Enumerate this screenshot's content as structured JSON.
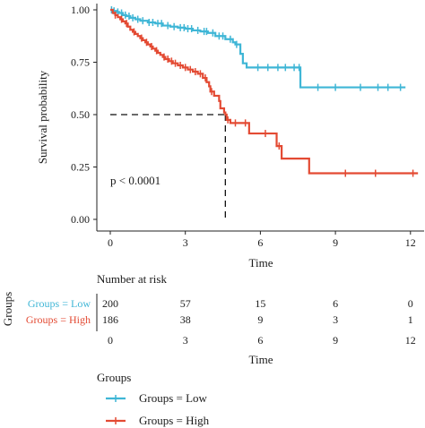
{
  "chart_data": {
    "type": "line",
    "subtype": "kaplan-meier",
    "title": "",
    "xlabel": "Time",
    "ylabel": "Survival probability",
    "xlim": [
      0,
      12.3
    ],
    "ylim": [
      0,
      1.0
    ],
    "x_ticks": [
      0,
      3,
      6,
      9,
      12
    ],
    "y_ticks": [
      0.0,
      0.25,
      0.5,
      0.75,
      1.0
    ],
    "y_tick_labels": [
      "0.00",
      "0.25",
      "0.50",
      "0.75",
      "1.00"
    ],
    "grid": false,
    "annotation": "p < 0.0001",
    "median_survival": {
      "x": 4.6,
      "y": 0.5
    },
    "series": [
      {
        "name": "Groups = Low",
        "color": "#3fb6d6",
        "steps": [
          [
            0,
            1.0
          ],
          [
            0.1,
            0.995
          ],
          [
            0.25,
            0.99
          ],
          [
            0.35,
            0.985
          ],
          [
            0.5,
            0.975
          ],
          [
            0.65,
            0.97
          ],
          [
            0.8,
            0.962
          ],
          [
            1.0,
            0.955
          ],
          [
            1.2,
            0.948
          ],
          [
            1.5,
            0.94
          ],
          [
            1.8,
            0.935
          ],
          [
            2.1,
            0.925
          ],
          [
            2.4,
            0.92
          ],
          [
            2.7,
            0.915
          ],
          [
            3.0,
            0.91
          ],
          [
            3.3,
            0.902
          ],
          [
            3.6,
            0.897
          ],
          [
            3.9,
            0.89
          ],
          [
            4.2,
            0.875
          ],
          [
            4.6,
            0.86
          ],
          [
            4.9,
            0.845
          ],
          [
            5.0,
            0.835
          ],
          [
            5.2,
            0.79
          ],
          [
            5.3,
            0.745
          ],
          [
            5.45,
            0.725
          ],
          [
            7.6,
            0.63
          ],
          [
            11.8,
            0.63
          ]
        ],
        "censor_times": [
          0.05,
          0.15,
          0.3,
          0.45,
          0.6,
          0.75,
          0.9,
          1.1,
          1.3,
          1.55,
          1.7,
          1.9,
          2.05,
          2.3,
          2.55,
          2.8,
          2.95,
          3.1,
          3.25,
          3.5,
          3.75,
          3.85,
          4.1,
          4.35,
          4.5,
          4.8,
          5.05,
          5.9,
          6.3,
          6.7,
          7.0,
          7.35,
          7.55,
          8.3,
          9.0,
          10.0,
          10.7,
          11.1,
          11.6
        ]
      },
      {
        "name": "Groups = High",
        "color": "#e34a33",
        "steps": [
          [
            0,
            1.0
          ],
          [
            0.1,
            0.985
          ],
          [
            0.2,
            0.975
          ],
          [
            0.3,
            0.965
          ],
          [
            0.4,
            0.955
          ],
          [
            0.5,
            0.945
          ],
          [
            0.6,
            0.935
          ],
          [
            0.7,
            0.92
          ],
          [
            0.8,
            0.905
          ],
          [
            0.9,
            0.895
          ],
          [
            1.0,
            0.885
          ],
          [
            1.1,
            0.875
          ],
          [
            1.2,
            0.865
          ],
          [
            1.3,
            0.855
          ],
          [
            1.4,
            0.845
          ],
          [
            1.5,
            0.835
          ],
          [
            1.6,
            0.825
          ],
          [
            1.7,
            0.815
          ],
          [
            1.8,
            0.805
          ],
          [
            1.9,
            0.795
          ],
          [
            2.0,
            0.785
          ],
          [
            2.1,
            0.775
          ],
          [
            2.2,
            0.765
          ],
          [
            2.35,
            0.755
          ],
          [
            2.5,
            0.745
          ],
          [
            2.7,
            0.735
          ],
          [
            2.9,
            0.725
          ],
          [
            3.1,
            0.715
          ],
          [
            3.3,
            0.705
          ],
          [
            3.5,
            0.695
          ],
          [
            3.7,
            0.675
          ],
          [
            3.85,
            0.655
          ],
          [
            3.95,
            0.635
          ],
          [
            4.0,
            0.61
          ],
          [
            4.15,
            0.59
          ],
          [
            4.35,
            0.565
          ],
          [
            4.4,
            0.53
          ],
          [
            4.55,
            0.51
          ],
          [
            4.6,
            0.5
          ],
          [
            4.65,
            0.475
          ],
          [
            4.8,
            0.46
          ],
          [
            5.55,
            0.41
          ],
          [
            6.65,
            0.35
          ],
          [
            6.85,
            0.29
          ],
          [
            7.95,
            0.22
          ],
          [
            12.3,
            0.22
          ]
        ],
        "censor_times": [
          0.2,
          0.45,
          0.65,
          0.95,
          1.25,
          1.45,
          1.65,
          1.85,
          2.15,
          2.3,
          2.45,
          2.6,
          2.8,
          3.0,
          3.2,
          3.4,
          3.6,
          3.8,
          4.05,
          4.7,
          5.0,
          5.4,
          6.2,
          6.75,
          9.4,
          10.6,
          12.1
        ]
      }
    ],
    "risk_table": {
      "title": "Number at risk",
      "ylabel": "Groups",
      "xlabel": "Time",
      "x_ticks": [
        0,
        3,
        6,
        9,
        12
      ],
      "rows": [
        {
          "label": "Groups = Low",
          "color": "#3fb6d6",
          "values": [
            "200",
            "57",
            "15",
            "6",
            "0"
          ]
        },
        {
          "label": "Groups = High",
          "color": "#e34a33",
          "values": [
            "186",
            "38",
            "9",
            "3",
            "1"
          ]
        }
      ]
    },
    "legend": {
      "title": "Groups",
      "placement": "bottom",
      "entries": [
        {
          "label": "Groups = Low",
          "color": "#3fb6d6"
        },
        {
          "label": "Groups = High",
          "color": "#e34a33"
        }
      ]
    }
  }
}
